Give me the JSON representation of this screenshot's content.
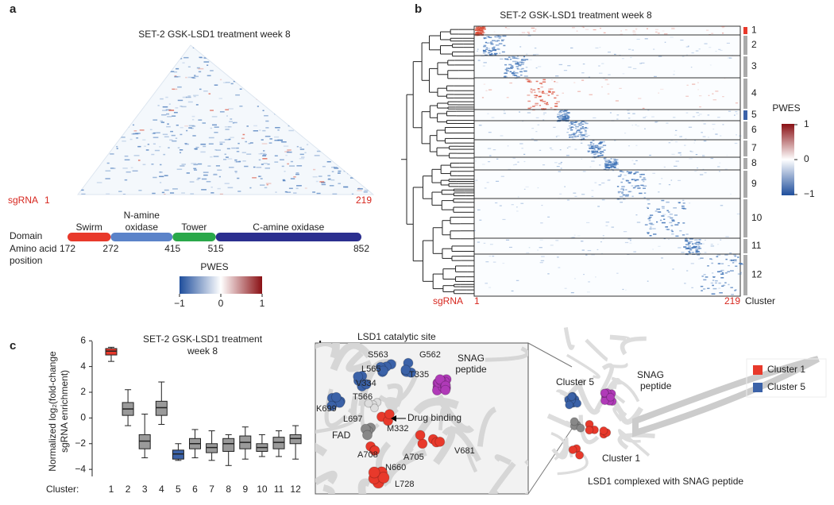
{
  "panels": {
    "a": {
      "letter": "a",
      "title": "SET-2 GSK-LSD1 treatment week 8",
      "sgrna_label": "sgRNA",
      "sgrna_start": "1",
      "sgrna_end": "219",
      "domain_label": "Domain",
      "position_label": [
        "Amino acid",
        "position"
      ],
      "positions": [
        172,
        272,
        415,
        515,
        852
      ],
      "domains": [
        {
          "name": [
            "Swirm"
          ],
          "start": 172,
          "end": 272,
          "color": "#e8392b"
        },
        {
          "name": [
            "N-amine",
            "oxidase"
          ],
          "start": 272,
          "end": 415,
          "color": "#5b83c9"
        },
        {
          "name": [
            "Tower"
          ],
          "start": 415,
          "end": 515,
          "color": "#2aa84a"
        },
        {
          "name": [
            "C-amine oxidase"
          ],
          "start": 515,
          "end": 852,
          "color": "#2b2f8f"
        }
      ],
      "colorbar": {
        "title": "PWES",
        "ticks": [
          {
            "value": -1,
            "label": "−1"
          },
          0,
          1
        ]
      }
    },
    "b": {
      "letter": "b",
      "title": "SET-2 GSK-LSD1 treatment week 8",
      "sgrna_label": "sgRNA",
      "sgrna_start": "1",
      "sgrna_end": "219",
      "cluster_label": "Cluster",
      "clusters": [
        "1",
        "2",
        "3",
        "4",
        "5",
        "6",
        "7",
        "8",
        "9",
        "10",
        "11",
        "12"
      ],
      "colorbar": {
        "title": "PWES",
        "ticks": [
          1,
          0,
          {
            "value": -1,
            "label": "−1"
          }
        ]
      }
    },
    "d": {
      "letter": "d",
      "inset_title": "LSD1 catalytic site",
      "residues": [
        "S563",
        "G562",
        "L565",
        "T335",
        "V334",
        "T566",
        "K699",
        "L697",
        "M332",
        "A708",
        "A705",
        "V681",
        "N660",
        "L728"
      ],
      "drug_label": "Drug binding",
      "fad_label": "FAD",
      "snag_label": [
        "SNAG",
        "peptide"
      ],
      "cluster5_label": "Cluster 5",
      "cluster1_label": "Cluster 1",
      "snag_label_right": [
        "SNAG",
        "peptide"
      ],
      "caption": "LSD1 complexed with SNAG peptide",
      "legend": [
        {
          "name": "Cluster 1",
          "color": "#e8392b"
        },
        {
          "name": "Cluster 5",
          "color": "#3b62a8"
        }
      ]
    }
  },
  "chart_data": {
    "type": "box",
    "letter": "c",
    "title": [
      "SET-2 GSK-LSD1 treatment",
      "week 8"
    ],
    "y_label": [
      "Normalized log₂(fold-change",
      "sgRNA enrichment)"
    ],
    "x_label": "Cluster:",
    "categories": [
      "1",
      "2",
      "3",
      "4",
      "5",
      "6",
      "7",
      "8",
      "9",
      "10",
      "11",
      "12"
    ],
    "min": [
      4.4,
      -0.6,
      -3.1,
      -0.5,
      -3.3,
      -3.1,
      -3.3,
      -3.7,
      -3.2,
      -3.0,
      -3.0,
      -3.2
    ],
    "q1": [
      4.9,
      0.2,
      -2.4,
      0.2,
      -3.2,
      -2.4,
      -2.7,
      -2.6,
      -2.4,
      -2.6,
      -2.4,
      -2.0
    ],
    "median": [
      5.2,
      0.7,
      -1.8,
      0.8,
      -2.8,
      -2.0,
      -2.3,
      -2.0,
      -1.9,
      -2.3,
      -1.9,
      -1.6
    ],
    "q3": [
      5.4,
      1.2,
      -1.3,
      1.3,
      -2.5,
      -1.6,
      -2.0,
      -1.6,
      -1.4,
      -2.0,
      -1.5,
      -1.3
    ],
    "max": [
      5.5,
      2.2,
      0.3,
      2.8,
      -2.0,
      -0.9,
      -1.0,
      -1.3,
      -0.7,
      -1.3,
      -1.0,
      -0.6
    ],
    "colors": [
      "#e8392b",
      "#9a9a9a",
      "#9a9a9a",
      "#9a9a9a",
      "#3b62a8",
      "#9a9a9a",
      "#9a9a9a",
      "#9a9a9a",
      "#9a9a9a",
      "#9a9a9a",
      "#9a9a9a",
      "#9a9a9a"
    ],
    "ylim": [
      -4.3,
      6.2
    ],
    "yticks": [
      6,
      4,
      2,
      0,
      {
        "value": -2,
        "label": "−2"
      },
      {
        "value": -4,
        "label": "−4"
      }
    ]
  }
}
